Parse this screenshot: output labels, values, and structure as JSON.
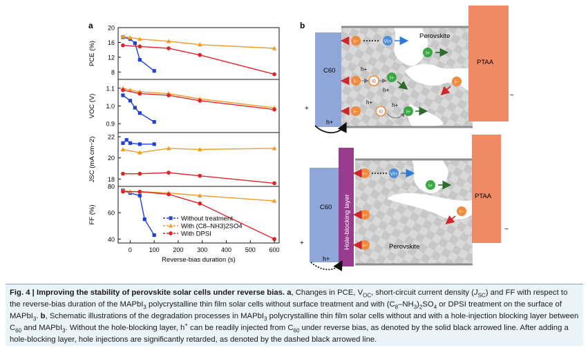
{
  "panel_a_label": "a",
  "panel_b_label": "b",
  "chart_data": [
    {
      "type": "line",
      "ylabel": "PCE (%)",
      "ylim": [
        6,
        20
      ],
      "yticks": [
        "20",
        "16",
        "12",
        "8"
      ],
      "series": [
        {
          "name": "Without treatment",
          "x": [
            -30,
            0,
            20,
            40,
            100
          ],
          "y": [
            17.4,
            16.9,
            15.8,
            11.3,
            8.3
          ]
        },
        {
          "name": "With (C8-NH3)2SO4",
          "x": [
            -30,
            0,
            40,
            160,
            290,
            600
          ],
          "y": [
            17.6,
            17.3,
            16.9,
            16.3,
            15.4,
            14.4
          ]
        },
        {
          "name": "With DPSI",
          "x": [
            -30,
            40,
            160,
            290,
            600
          ],
          "y": [
            15.2,
            14.9,
            14.4,
            12.6,
            7.4
          ]
        }
      ]
    },
    {
      "type": "line",
      "ylabel": "VOC (V)",
      "ylim": [
        0.85,
        1.15
      ],
      "yticks": [
        "1.1",
        "1.0",
        "0.9"
      ],
      "series": [
        {
          "name": "Without treatment",
          "x": [
            -30,
            0,
            20,
            40,
            100
          ],
          "y": [
            1.06,
            1.03,
            0.99,
            0.96,
            0.91
          ]
        },
        {
          "name": "With (C8-NH3)2SO4",
          "x": [
            -30,
            0,
            40,
            160,
            290,
            600
          ],
          "y": [
            1.1,
            1.09,
            1.08,
            1.07,
            1.04,
            0.99
          ]
        },
        {
          "name": "With DPSI",
          "x": [
            -30,
            40,
            160,
            290,
            600
          ],
          "y": [
            1.09,
            1.07,
            1.06,
            1.03,
            0.98
          ]
        }
      ]
    },
    {
      "type": "line",
      "ylabel": "JSC (mA cm−2)",
      "ylim": [
        17.3,
        22.4
      ],
      "yticks": [
        "22",
        "20",
        "18"
      ],
      "series": [
        {
          "name": "Without treatment",
          "x": [
            -30,
            -15,
            0,
            40,
            100
          ],
          "y": [
            21.4,
            21.7,
            21.4,
            21.3,
            21.3
          ]
        },
        {
          "name": "With (C8-NH3)2SO4",
          "x": [
            -30,
            40,
            160,
            290,
            600
          ],
          "y": [
            20.8,
            20.5,
            20.9,
            20.8,
            20.9
          ]
        },
        {
          "name": "With DPSI",
          "x": [
            -30,
            40,
            160,
            290,
            600
          ],
          "y": [
            18.5,
            18.5,
            18.6,
            18.3,
            17.6
          ]
        }
      ]
    },
    {
      "type": "line",
      "ylabel": "FF (%)",
      "ylim": [
        37,
        80
      ],
      "yticks": [
        "80",
        "60",
        "40"
      ],
      "xlabel": "Reverse-bias duration (s)",
      "xlim": [
        -50,
        620
      ],
      "xticks": [
        "0",
        "100",
        "200",
        "300",
        "400",
        "500",
        "600"
      ],
      "series": [
        {
          "name": "Without treatment",
          "x": [
            -30,
            0,
            40,
            60,
            100
          ],
          "y": [
            77,
            75,
            73,
            55,
            43
          ]
        },
        {
          "name": "With (C8-NH3)2SO4",
          "x": [
            -30,
            0,
            40,
            160,
            290,
            600
          ],
          "y": [
            77,
            76,
            76,
            75,
            73,
            69
          ]
        },
        {
          "name": "With DPSI",
          "x": [
            -30,
            40,
            160,
            290,
            600
          ],
          "y": [
            76,
            76,
            74,
            67,
            40
          ]
        }
      ]
    }
  ],
  "legend": [
    {
      "label": "Without treatment",
      "color": "#1f3fd6"
    },
    {
      "label": "With (C8–NH3)2SO4",
      "color": "#f59a23"
    },
    {
      "label": "With DPSI",
      "color": "#e0242a"
    }
  ],
  "schematic": {
    "top": {
      "c60": "C60",
      "perovskite": "Perovskite",
      "ptaa": "PTAA",
      "plus": "+",
      "minus": "−",
      "h_plus": "h+"
    },
    "bottom": {
      "c60": "C60",
      "perovskite": "Perovskite",
      "ptaa": "PTAA",
      "hbl": "Hole-blocking layer",
      "plus": "+",
      "minus": "−",
      "h_plus": "h+"
    },
    "ion_labels": {
      "i_minus": "I−",
      "v_plus": "VI+",
      "i_plus": "I+",
      "i_zero": "I0",
      "h": "h+"
    }
  },
  "colors": {
    "blue": "#1f3fd6",
    "orange": "#f59a23",
    "red": "#e0242a",
    "ptaa": "#f08a64",
    "c60": "#8ea6d8",
    "hbl": "#9b3b8f",
    "caption_bg": "#eaf3f8"
  },
  "caption": {
    "fig_label": "Fig. 4 | Improving the stability of perovskite solar cells under reverse bias.",
    "a_label": "a",
    "a_text": "Changes in PCE, V",
    "b_label": "b",
    "full_text_tail": "Schematic illustrations of the degradation processes in MAPbI3 polycrystalline thin film solar cells without and with a hole-injection blocking layer between C60 and MAPbI3. Without the hole-blocking layer, h+ can be readily injected from C60 under reverse bias, as denoted by the solid black arrowed line. After adding a hole-blocking layer, hole injections are significantly retarded, as denoted by the dashed black arrowed line."
  }
}
